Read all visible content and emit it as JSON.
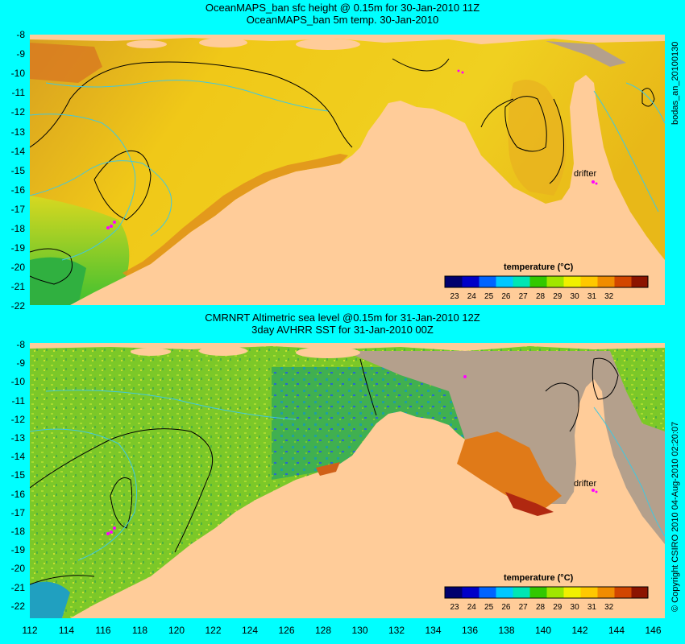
{
  "panel_top": {
    "title_line1": "OceanMAPS_ban sfc height @ 0.15m for 30-Jan-2010 11Z",
    "title_line2": "OceanMAPS_ban 5m temp. 30-Jan-2010",
    "side_label": "bodas_an_20100130",
    "drifter_label": "drifter"
  },
  "panel_bottom": {
    "title_line1": "CMRNRT Altimetric sea level  @0.15m  for 31-Jan-2010 12Z",
    "title_line2": "3day AVHRR SST for 31-Jan-2010 00Z",
    "side_label": "© Copyright CSIRO 2010   04-Aug-2010 02:20:07",
    "drifter_label": "drifter"
  },
  "y_axis_labels": [
    "-8",
    "-9",
    "-10",
    "-11",
    "-12",
    "-13",
    "-14",
    "-15",
    "-16",
    "-17",
    "-18",
    "-19",
    "-20",
    "-21",
    "-22"
  ],
  "x_axis_labels": [
    "112",
    "114",
    "116",
    "118",
    "120",
    "122",
    "124",
    "126",
    "128",
    "130",
    "132",
    "134",
    "136",
    "138",
    "140",
    "142",
    "144",
    "146"
  ],
  "colorbar": {
    "title": "temperature (°C)",
    "ticks": [
      "23",
      "24",
      "25",
      "26",
      "27",
      "28",
      "29",
      "30",
      "31",
      "32"
    ],
    "colors": [
      "#00006e",
      "#0000c8",
      "#0064ff",
      "#00c8ff",
      "#00e6b4",
      "#32c800",
      "#a0e600",
      "#f0f000",
      "#ffc800",
      "#f08c00",
      "#d24600",
      "#8c1400"
    ]
  },
  "colors": {
    "background": "#00ffff",
    "land": "#ffcc99",
    "no_data": "#b4a08c",
    "contour": "#000000",
    "bathymetry": "#40c8e0",
    "drifter": "#ff00ff"
  }
}
